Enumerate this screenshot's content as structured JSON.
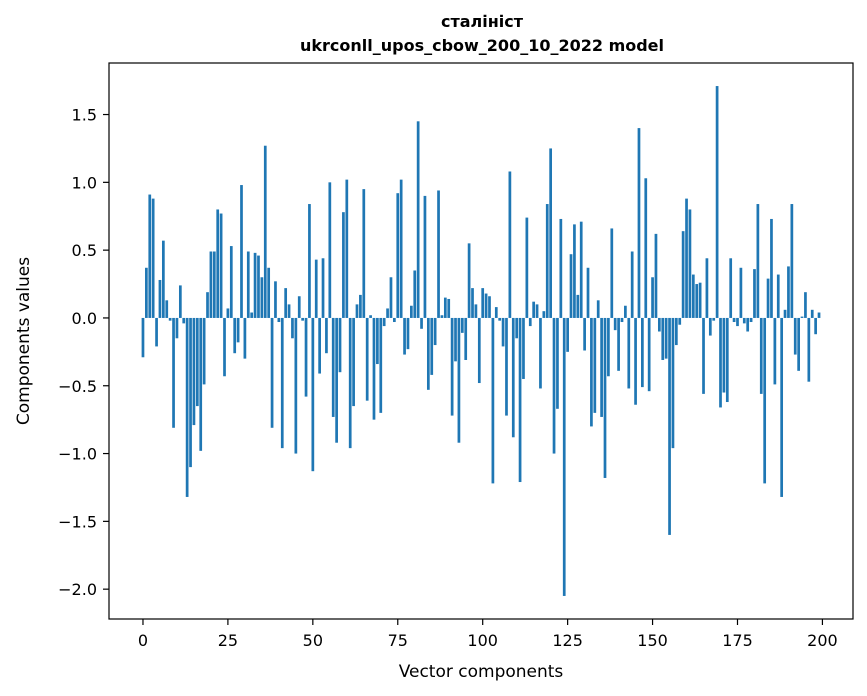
{
  "chart_data": {
    "type": "bar",
    "title": "сталініст",
    "subtitle": "ukrconll_upos_cbow_200_10_2022 model",
    "xlabel": "Vector components",
    "ylabel": "Components values",
    "xlim": [
      -10,
      209
    ],
    "ylim": [
      -2.22,
      1.88
    ],
    "xticks": [
      0,
      25,
      50,
      75,
      100,
      125,
      150,
      175,
      200
    ],
    "yticks": [
      -2.0,
      -1.5,
      -1.0,
      -0.5,
      0.0,
      0.5,
      1.0,
      1.5
    ],
    "ytick_labels": [
      "−2.0",
      "−1.5",
      "−1.0",
      "−0.5",
      "0.0",
      "0.5",
      "1.0",
      "1.5"
    ],
    "grid": false,
    "bar_color": "#1f77b4",
    "x": [
      0,
      1,
      2,
      3,
      4,
      5,
      6,
      7,
      8,
      9,
      10,
      11,
      12,
      13,
      14,
      15,
      16,
      17,
      18,
      19,
      20,
      21,
      22,
      23,
      24,
      25,
      26,
      27,
      28,
      29,
      30,
      31,
      32,
      33,
      34,
      35,
      36,
      37,
      38,
      39,
      40,
      41,
      42,
      43,
      44,
      45,
      46,
      47,
      48,
      49,
      50,
      51,
      52,
      53,
      54,
      55,
      56,
      57,
      58,
      59,
      60,
      61,
      62,
      63,
      64,
      65,
      66,
      67,
      68,
      69,
      70,
      71,
      72,
      73,
      74,
      75,
      76,
      77,
      78,
      79,
      80,
      81,
      82,
      83,
      84,
      85,
      86,
      87,
      88,
      89,
      90,
      91,
      92,
      93,
      94,
      95,
      96,
      97,
      98,
      99,
      100,
      101,
      102,
      103,
      104,
      105,
      106,
      107,
      108,
      109,
      110,
      111,
      112,
      113,
      114,
      115,
      116,
      117,
      118,
      119,
      120,
      121,
      122,
      123,
      124,
      125,
      126,
      127,
      128,
      129,
      130,
      131,
      132,
      133,
      134,
      135,
      136,
      137,
      138,
      139,
      140,
      141,
      142,
      143,
      144,
      145,
      146,
      147,
      148,
      149,
      150,
      151,
      152,
      153,
      154,
      155,
      156,
      157,
      158,
      159,
      160,
      161,
      162,
      163,
      164,
      165,
      166,
      167,
      168,
      169,
      170,
      171,
      172,
      173,
      174,
      175,
      176,
      177,
      178,
      179,
      180,
      181,
      182,
      183,
      184,
      185,
      186,
      187,
      188,
      189,
      190,
      191,
      192,
      193,
      194,
      195,
      196,
      197,
      198,
      199
    ],
    "values": [
      -0.29,
      0.37,
      0.91,
      0.88,
      -0.21,
      0.28,
      0.57,
      0.13,
      -0.02,
      -0.81,
      -0.15,
      0.24,
      -0.04,
      -1.32,
      -1.1,
      -0.79,
      -0.65,
      -0.98,
      -0.49,
      0.19,
      0.49,
      0.49,
      0.8,
      0.77,
      -0.43,
      0.07,
      0.53,
      -0.26,
      -0.18,
      0.98,
      -0.3,
      0.49,
      0.04,
      0.48,
      0.46,
      0.3,
      1.27,
      0.37,
      -0.81,
      0.27,
      -0.03,
      -0.96,
      0.22,
      0.1,
      -0.15,
      -1.0,
      0.16,
      -0.02,
      -0.58,
      0.84,
      -1.13,
      0.43,
      -0.41,
      0.44,
      -0.26,
      1.0,
      -0.73,
      -0.92,
      -0.4,
      0.78,
      1.02,
      -0.96,
      -0.65,
      0.1,
      0.17,
      0.95,
      -0.61,
      0.02,
      -0.75,
      -0.34,
      -0.7,
      -0.06,
      0.07,
      0.3,
      -0.03,
      0.92,
      1.02,
      -0.27,
      -0.23,
      0.09,
      0.35,
      1.45,
      -0.08,
      0.9,
      -0.53,
      -0.42,
      -0.2,
      0.94,
      0.02,
      0.15,
      0.14,
      -0.72,
      -0.32,
      -0.92,
      -0.11,
      -0.31,
      0.55,
      0.22,
      0.1,
      -0.48,
      0.22,
      0.18,
      0.16,
      -1.22,
      0.08,
      -0.02,
      -0.21,
      -0.72,
      1.08,
      -0.88,
      -0.15,
      -1.21,
      -0.45,
      0.74,
      -0.06,
      0.12,
      0.1,
      -0.52,
      0.05,
      0.84,
      1.25,
      -1.0,
      -0.67,
      0.73,
      -2.05,
      -0.25,
      0.47,
      0.69,
      0.17,
      0.71,
      -0.24,
      0.37,
      -0.8,
      -0.7,
      0.13,
      -0.73,
      -1.18,
      -0.43,
      0.66,
      -0.09,
      -0.39,
      -0.03,
      0.09,
      -0.52,
      0.49,
      -0.64,
      1.4,
      -0.51,
      1.03,
      -0.54,
      0.3,
      0.62,
      -0.1,
      -0.31,
      -0.3,
      -1.6,
      -0.96,
      -0.2,
      -0.05,
      0.64,
      0.88,
      0.8,
      0.32,
      0.25,
      0.26,
      -0.56,
      0.44,
      -0.13,
      -0.02,
      1.71,
      -0.66,
      -0.55,
      -0.62,
      0.44,
      -0.03,
      -0.06,
      0.37,
      -0.04,
      -0.1,
      -0.03,
      0.36,
      0.84,
      -0.56,
      -1.22,
      0.29,
      0.73,
      -0.49,
      0.32,
      -1.32,
      0.06,
      0.38,
      0.84,
      -0.27,
      -0.39,
      0.01,
      0.19,
      -0.47,
      0.06,
      -0.12,
      0.04
    ]
  }
}
